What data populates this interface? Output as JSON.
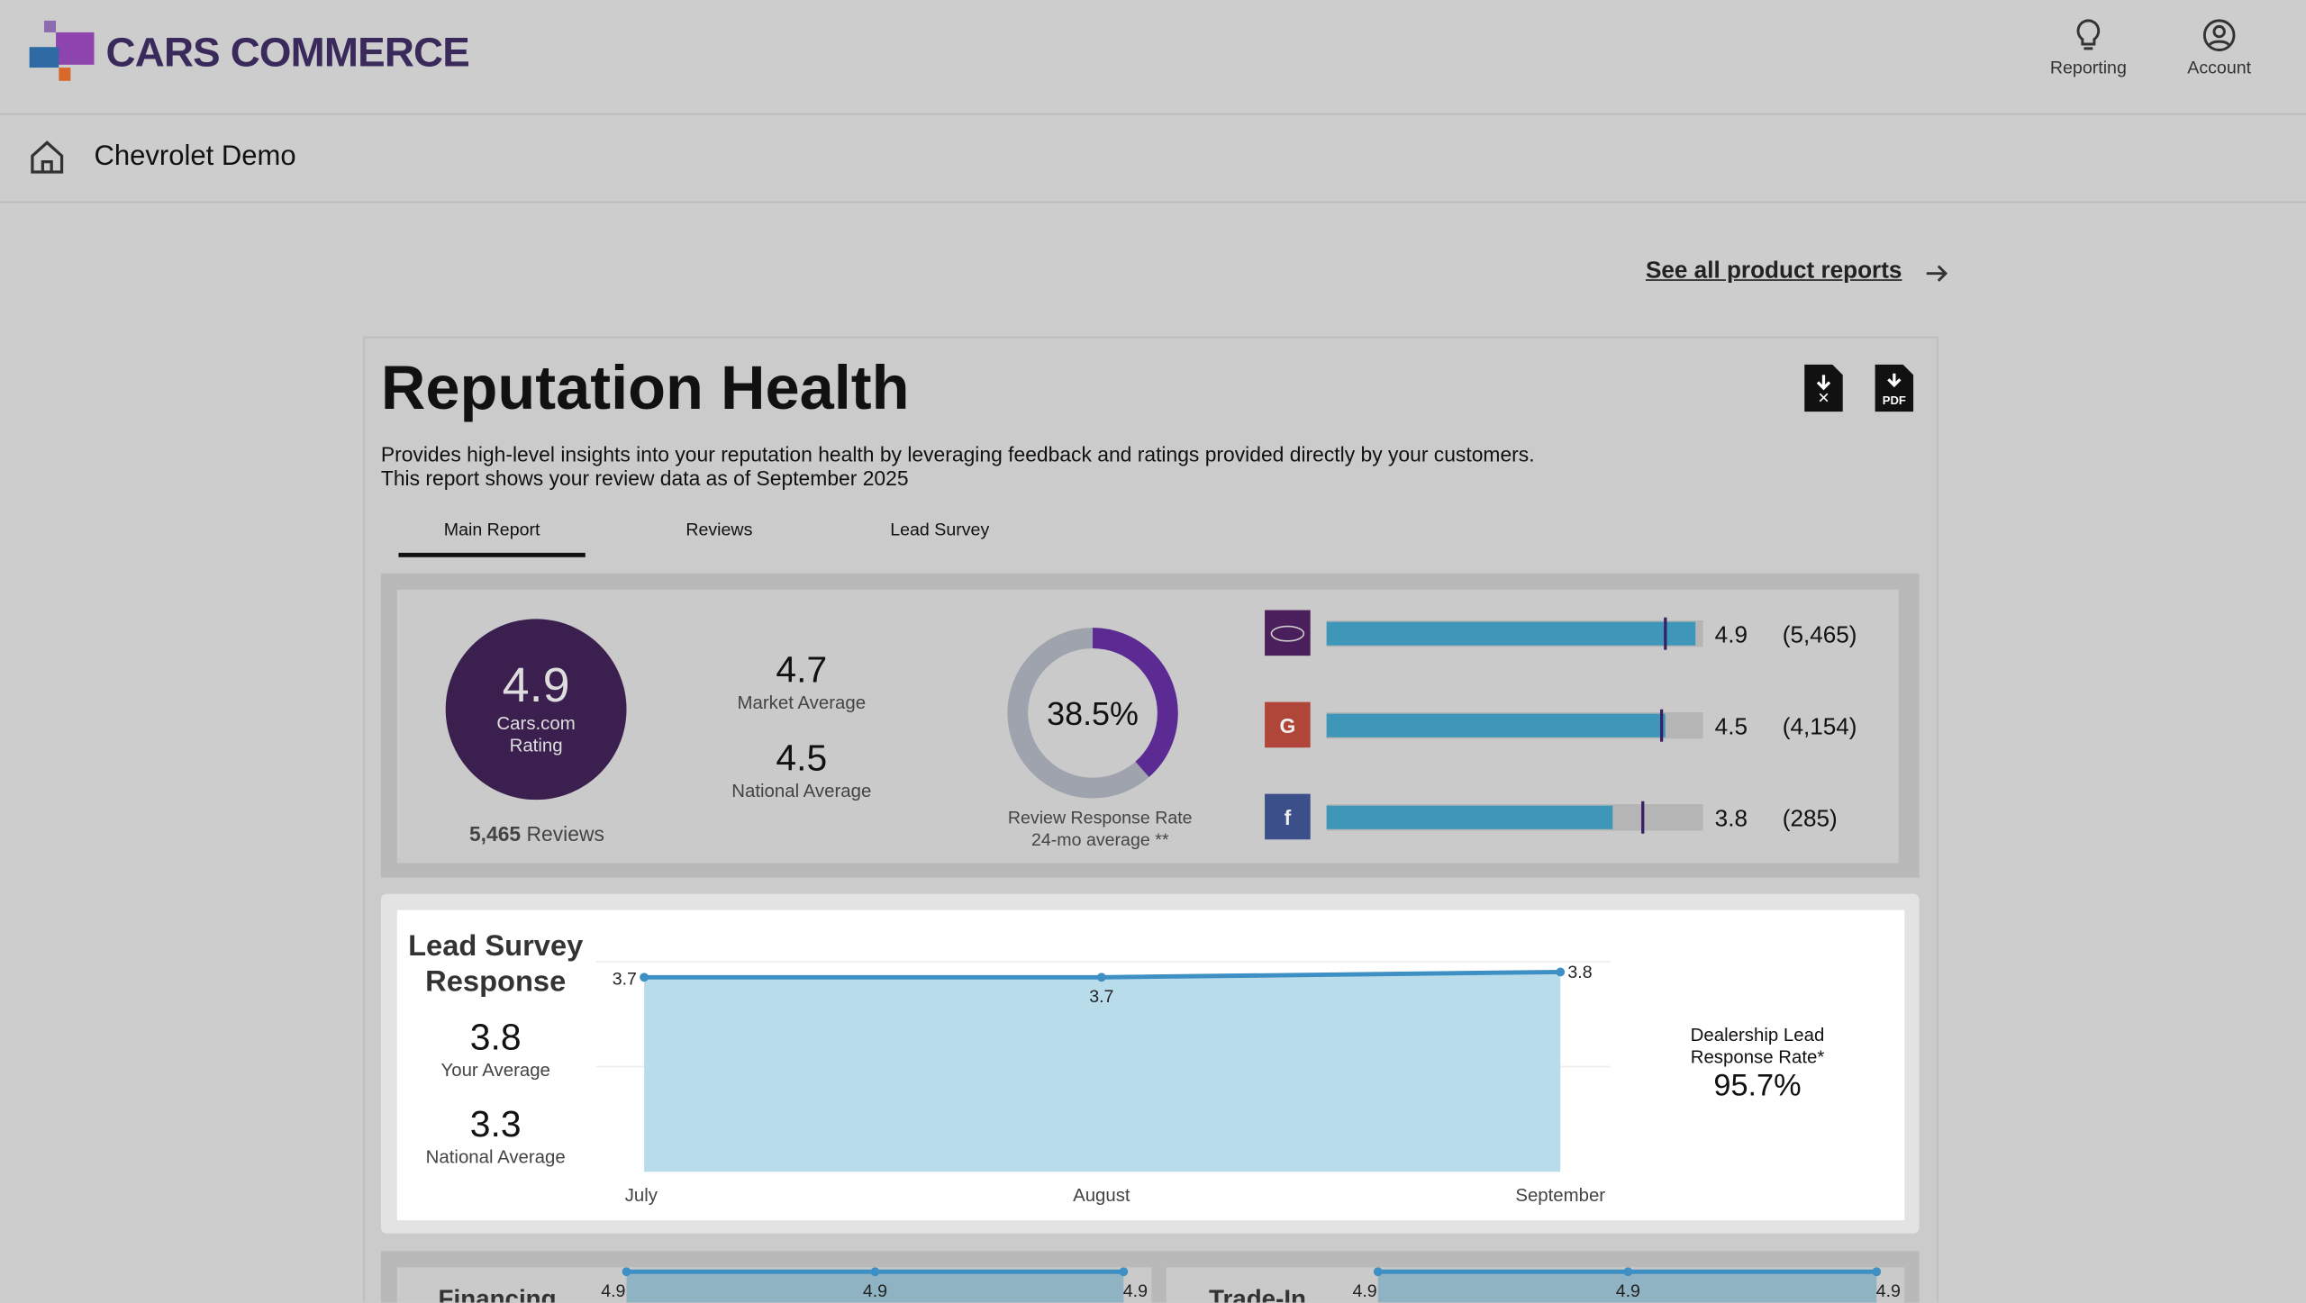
{
  "header": {
    "brand": "CARS COMMERCE",
    "nav": [
      "Reporting",
      "Account"
    ]
  },
  "breadcrumb": "Chevrolet Demo",
  "link": "See all product reports",
  "report": {
    "title": "Reputation Health",
    "description": [
      "Provides high-level insights into your reputation health by leveraging feedback and ratings provided directly by your customers.",
      "This report shows your review data as of September 2025"
    ],
    "tabs": [
      "Main Report",
      "Reviews",
      "Lead Survey"
    ],
    "summary": {
      "rating": "4.9",
      "rating_label": "Cars.com Rating",
      "reviews": {
        "count": "5,465",
        "label": "Reviews"
      },
      "market": {
        "value": "4.7",
        "label": "Market Average"
      },
      "national": {
        "value": "4.5",
        "label": "National Average"
      },
      "response_rate": {
        "value": 38.5,
        "label": "38.5%",
        "caption": "Review Response Rate 24-mo average **"
      },
      "source_scale": [
        0,
        5
      ],
      "sources": [
        {
          "icon": "",
          "rating": 4.9,
          "benchmark": 4.5,
          "count": "(5,465)",
          "color": "#4a1f5c"
        },
        {
          "icon": "G",
          "rating": 4.5,
          "benchmark": 4.45,
          "count": "(4,154)",
          "color": "#b0463a"
        },
        {
          "icon": "f",
          "rating": 3.8,
          "benchmark": 4.2,
          "count": "(285)",
          "color": "#3b4f8a"
        }
      ]
    },
    "lead_survey": {
      "title": "Lead Survey Response",
      "your_average": {
        "value": "3.8",
        "label": "Your Average"
      },
      "national_average": {
        "value": "3.3",
        "label": "National Average"
      },
      "chart_data": {
        "type": "area",
        "categories": [
          "July",
          "August",
          "September"
        ],
        "values": [
          3.7,
          3.7,
          3.8
        ],
        "ylim": [
          0,
          4
        ],
        "yticks": [
          2,
          4
        ],
        "color": "#3d8fc4"
      },
      "response_rate": {
        "label": "Dealership Lead Response Rate*",
        "value": "95.7%"
      }
    },
    "financing": {
      "title": "Financing",
      "values": [
        4.9,
        4.9,
        4.9
      ]
    },
    "trade_in": {
      "title": "Trade-In",
      "values": [
        4.9,
        4.9,
        4.9
      ]
    }
  }
}
